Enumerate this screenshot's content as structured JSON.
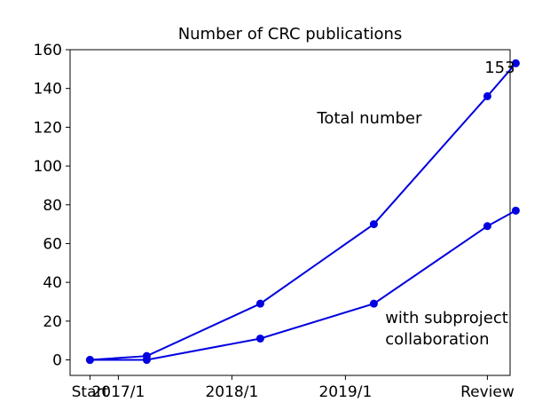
{
  "chart_data": {
    "type": "line",
    "title": "Number of CRC publications",
    "xlabel": "",
    "ylabel": "",
    "x_ticks": [
      {
        "x": 0,
        "label": "Start"
      },
      {
        "x": 1,
        "label": "2017/1"
      },
      {
        "x": 5,
        "label": "2018/1"
      },
      {
        "x": 9,
        "label": "2019/1"
      },
      {
        "x": 14,
        "label": "Review"
      }
    ],
    "xlim": [
      -0.7,
      14.8
    ],
    "ylim": [
      -8,
      160
    ],
    "y_ticks": [
      0,
      20,
      40,
      60,
      80,
      100,
      120,
      140,
      160
    ],
    "grid": false,
    "color": "#0000e0",
    "series": [
      {
        "x": [
          0,
          2,
          6,
          10,
          14,
          15
        ],
        "y": [
          0,
          2,
          29,
          70,
          136,
          153
        ]
      },
      {
        "x": [
          0,
          2,
          6,
          10,
          14,
          15
        ],
        "y": [
          0,
          0,
          11,
          29,
          69,
          77
        ]
      }
    ],
    "annotations": [
      {
        "text": "153",
        "x": 13.9,
        "y": 148
      },
      {
        "text": "Total number",
        "x": 8.0,
        "y": 122
      },
      {
        "text": "with subproject",
        "x": 10.4,
        "y": 19
      },
      {
        "text": "collaboration",
        "x": 10.4,
        "y": 8
      }
    ]
  }
}
